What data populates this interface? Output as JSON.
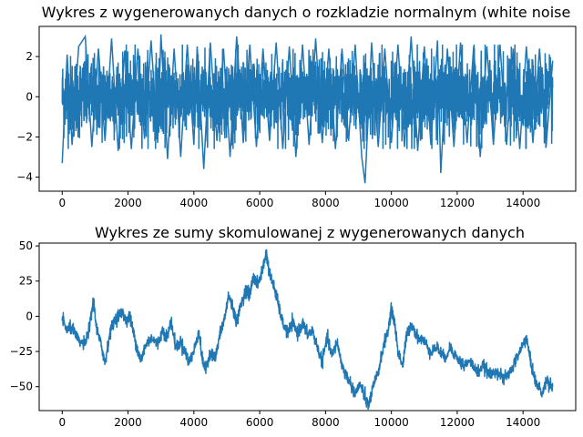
{
  "chart_data": [
    {
      "type": "line",
      "title": "Wykres z wygenerowanych danych o rozkladzie normalnym (white noise",
      "xlabel": "",
      "ylabel": "",
      "xlim": [
        -700,
        15600
      ],
      "ylim": [
        -4.7,
        3.5
      ],
      "xticks": [
        0,
        2000,
        4000,
        6000,
        8000,
        10000,
        12000,
        14000
      ],
      "yticks": [
        -4,
        -2,
        0,
        2
      ],
      "color": "#1f77b4",
      "grid": false,
      "series": [
        {
          "x_start": 0,
          "x_end": 14900,
          "description_points": [
            [
              0,
              -3.3
            ],
            [
              150,
              2.1
            ],
            [
              300,
              -2.4
            ],
            [
              500,
              2.5
            ],
            [
              700,
              3.0
            ],
            [
              900,
              -2.5
            ],
            [
              1100,
              2.4
            ],
            [
              1300,
              -2.2
            ],
            [
              1500,
              2.9
            ],
            [
              1700,
              -2.7
            ],
            [
              1900,
              2.3
            ],
            [
              2100,
              -2.6
            ],
            [
              2300,
              2.4
            ],
            [
              2500,
              -2.1
            ],
            [
              2700,
              2.8
            ],
            [
              2900,
              -2.3
            ],
            [
              3000,
              3.1
            ],
            [
              3200,
              -3.1
            ],
            [
              3400,
              2.4
            ],
            [
              3600,
              -3.0
            ],
            [
              3800,
              2.6
            ],
            [
              4000,
              -2.4
            ],
            [
              4100,
              2.5
            ],
            [
              4300,
              -3.6
            ],
            [
              4500,
              2.7
            ],
            [
              4700,
              -2.2
            ],
            [
              4900,
              2.4
            ],
            [
              5100,
              -3.0
            ],
            [
              5300,
              3.0
            ],
            [
              5500,
              -2.3
            ],
            [
              5700,
              2.6
            ],
            [
              5900,
              -2.5
            ],
            [
              6100,
              2.4
            ],
            [
              6300,
              -2.2
            ],
            [
              6500,
              2.7
            ],
            [
              6700,
              -2.6
            ],
            [
              6900,
              2.5
            ],
            [
              7100,
              -3.0
            ],
            [
              7300,
              2.6
            ],
            [
              7500,
              -2.4
            ],
            [
              7700,
              2.9
            ],
            [
              7900,
              -2.3
            ],
            [
              8100,
              2.4
            ],
            [
              8300,
              -2.6
            ],
            [
              8500,
              2.4
            ],
            [
              8700,
              -2.2
            ],
            [
              8900,
              2.6
            ],
            [
              9100,
              -3.0
            ],
            [
              9200,
              -4.3
            ],
            [
              9400,
              2.7
            ],
            [
              9600,
              -2.5
            ],
            [
              9800,
              2.4
            ],
            [
              10000,
              -2.3
            ],
            [
              10200,
              2.6
            ],
            [
              10400,
              -2.5
            ],
            [
              10600,
              3.0
            ],
            [
              10800,
              -2.7
            ],
            [
              11000,
              2.5
            ],
            [
              11200,
              -2.4
            ],
            [
              11400,
              2.8
            ],
            [
              11500,
              -3.8
            ],
            [
              11700,
              2.4
            ],
            [
              11900,
              -2.5
            ],
            [
              12100,
              2.7
            ],
            [
              12300,
              -2.3
            ],
            [
              12500,
              2.5
            ],
            [
              12700,
              -3.0
            ],
            [
              12900,
              2.5
            ],
            [
              13100,
              -2.4
            ],
            [
              13300,
              2.6
            ],
            [
              13500,
              -2.4
            ],
            [
              13700,
              2.4
            ],
            [
              13900,
              -2.6
            ],
            [
              14100,
              2.5
            ],
            [
              14300,
              -2.3
            ],
            [
              14500,
              2.4
            ],
            [
              14700,
              -2.5
            ],
            [
              14900,
              1.8
            ]
          ]
        }
      ]
    },
    {
      "type": "line",
      "title": "Wykres ze sumy skomulowanej z wygenerowanych danych",
      "xlabel": "",
      "ylabel": "",
      "xlim": [
        -700,
        15600
      ],
      "ylim": [
        -67,
        52
      ],
      "xticks": [
        0,
        2000,
        4000,
        6000,
        8000,
        10000,
        12000,
        14000
      ],
      "yticks": [
        -50,
        -25,
        0,
        25,
        50
      ],
      "color": "#1f77b4",
      "grid": false,
      "series": [
        {
          "points": [
            [
              0,
              -2
            ],
            [
              150,
              -10
            ],
            [
              300,
              -8
            ],
            [
              500,
              -18
            ],
            [
              700,
              -20
            ],
            [
              850,
              -5
            ],
            [
              950,
              12
            ],
            [
              1050,
              -10
            ],
            [
              1200,
              -22
            ],
            [
              1300,
              -33
            ],
            [
              1450,
              -12
            ],
            [
              1600,
              -2
            ],
            [
              1800,
              3
            ],
            [
              1950,
              -3
            ],
            [
              2050,
              0
            ],
            [
              2150,
              -10
            ],
            [
              2300,
              -25
            ],
            [
              2400,
              -32
            ],
            [
              2500,
              -22
            ],
            [
              2700,
              -15
            ],
            [
              2900,
              -20
            ],
            [
              3050,
              -10
            ],
            [
              3200,
              -15
            ],
            [
              3300,
              -3
            ],
            [
              3450,
              -22
            ],
            [
              3600,
              -18
            ],
            [
              3750,
              -26
            ],
            [
              3850,
              -33
            ],
            [
              4000,
              -25
            ],
            [
              4150,
              -10
            ],
            [
              4250,
              -30
            ],
            [
              4350,
              -38
            ],
            [
              4500,
              -25
            ],
            [
              4650,
              -30
            ],
            [
              4800,
              -12
            ],
            [
              4950,
              0
            ],
            [
              5050,
              15
            ],
            [
              5200,
              5
            ],
            [
              5300,
              -5
            ],
            [
              5450,
              10
            ],
            [
              5600,
              20
            ],
            [
              5700,
              15
            ],
            [
              5800,
              28
            ],
            [
              5950,
              22
            ],
            [
              6100,
              35
            ],
            [
              6200,
              45
            ],
            [
              6300,
              30
            ],
            [
              6450,
              20
            ],
            [
              6550,
              10
            ],
            [
              6700,
              -5
            ],
            [
              6850,
              -12
            ],
            [
              7000,
              -5
            ],
            [
              7150,
              -12
            ],
            [
              7300,
              -5
            ],
            [
              7450,
              -13
            ],
            [
              7600,
              -10
            ],
            [
              7750,
              -22
            ],
            [
              7900,
              -32
            ],
            [
              8050,
              -15
            ],
            [
              8200,
              -28
            ],
            [
              8350,
              -18
            ],
            [
              8500,
              -35
            ],
            [
              8700,
              -45
            ],
            [
              8900,
              -55
            ],
            [
              9050,
              -48
            ],
            [
              9200,
              -58
            ],
            [
              9300,
              -64
            ],
            [
              9450,
              -50
            ],
            [
              9600,
              -40
            ],
            [
              9750,
              -22
            ],
            [
              9900,
              -10
            ],
            [
              10000,
              5
            ],
            [
              10100,
              -5
            ],
            [
              10200,
              -25
            ],
            [
              10350,
              -35
            ],
            [
              10450,
              -15
            ],
            [
              10600,
              -5
            ],
            [
              10800,
              -15
            ],
            [
              11000,
              -18
            ],
            [
              11200,
              -25
            ],
            [
              11400,
              -22
            ],
            [
              11600,
              -30
            ],
            [
              11800,
              -22
            ],
            [
              12000,
              -30
            ],
            [
              12200,
              -35
            ],
            [
              12400,
              -32
            ],
            [
              12600,
              -40
            ],
            [
              12800,
              -35
            ],
            [
              13000,
              -42
            ],
            [
              13200,
              -38
            ],
            [
              13400,
              -45
            ],
            [
              13600,
              -40
            ],
            [
              13800,
              -30
            ],
            [
              14000,
              -20
            ],
            [
              14100,
              -15
            ],
            [
              14250,
              -35
            ],
            [
              14400,
              -48
            ],
            [
              14600,
              -55
            ],
            [
              14700,
              -45
            ],
            [
              14900,
              -50
            ]
          ]
        }
      ]
    }
  ]
}
